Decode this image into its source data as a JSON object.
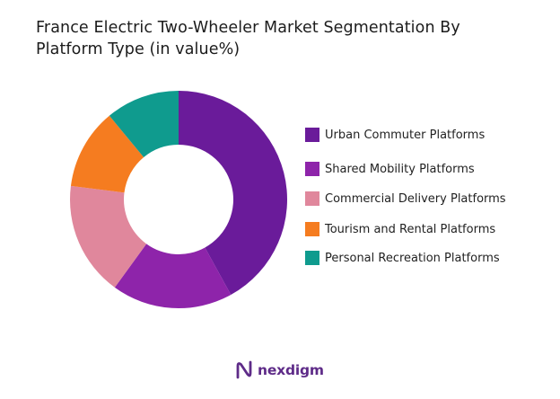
{
  "chart_data": {
    "type": "donut",
    "title_lines": [
      "France Electric Two-Wheeler Market Segmentation By",
      "Platform Type (in value%)"
    ],
    "series": [
      {
        "name": "Urban Commuter Platforms",
        "value": 42,
        "color": "#6a1b9a"
      },
      {
        "name": "Shared Mobility Platforms",
        "value": 18,
        "color": "#8e24aa"
      },
      {
        "name": "Commercial Delivery Platforms",
        "value": 17,
        "color": "#e0879c"
      },
      {
        "name": "Tourism and Rental Platforms",
        "value": 12,
        "color": "#f57c20"
      },
      {
        "name": "Personal Recreation Platforms",
        "value": 11,
        "color": "#0f9b8e"
      }
    ],
    "legend_position": "right",
    "start_angle_deg": 0,
    "direction": "clockwise"
  },
  "brand": {
    "name": "nexdigm",
    "color": "#5e2b88"
  }
}
